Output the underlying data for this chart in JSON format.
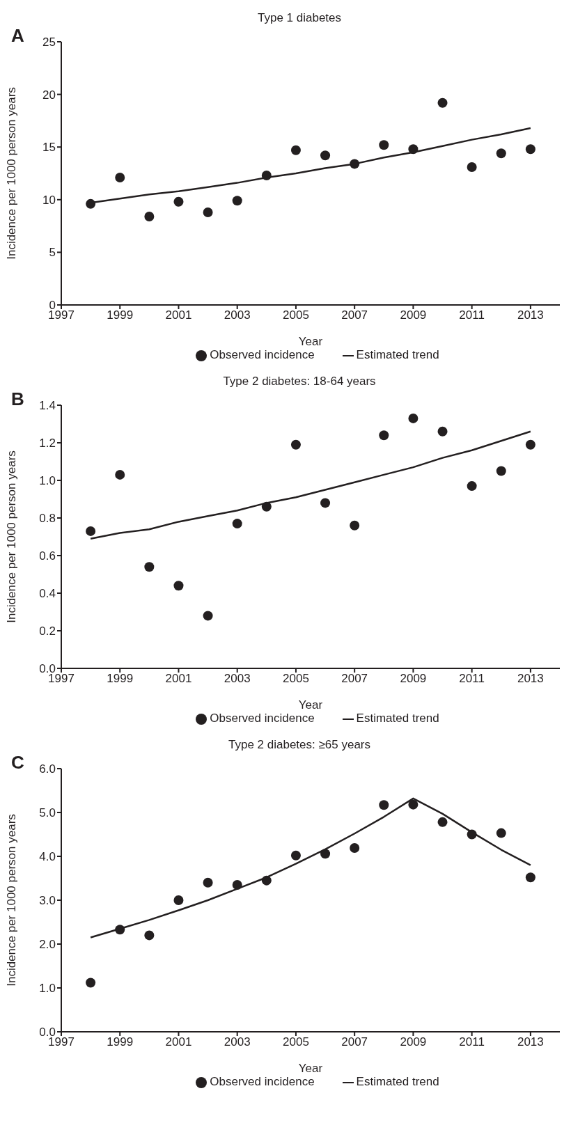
{
  "chart_data": [
    {
      "type": "scatter",
      "title": "Type 1 diabetes",
      "annotations": [
        "A"
      ],
      "xlabel": "Year",
      "ylabel": "Incidence per 1000 person years",
      "xlim": [
        1997,
        2014
      ],
      "xticks": [
        1997,
        1999,
        2001,
        2003,
        2005,
        2007,
        2009,
        2011,
        2013
      ],
      "ylim": [
        0,
        25
      ],
      "yticks": [
        0,
        5,
        10,
        15,
        20,
        25
      ],
      "grid": false,
      "legend": "bottom",
      "series": [
        {
          "name": "Observed incidence",
          "marker": "circle",
          "color": "#231f20",
          "x": [
            1998,
            1999,
            2000,
            2001,
            2002,
            2003,
            2004,
            2005,
            2006,
            2007,
            2008,
            2009,
            2010,
            2011,
            2012,
            2013
          ],
          "values": [
            9.6,
            12.1,
            8.4,
            9.8,
            8.8,
            9.9,
            12.3,
            14.7,
            14.2,
            13.4,
            15.2,
            14.8,
            19.2,
            13.1,
            14.4,
            14.8
          ]
        },
        {
          "name": "Estimated trend",
          "type": "line",
          "marker": "none",
          "line_style": "solid",
          "color": "#231f20",
          "x": [
            1998,
            1999,
            2000,
            2001,
            2002,
            2003,
            2004,
            2005,
            2006,
            2007,
            2008,
            2009,
            2010,
            2011,
            2012,
            2013
          ],
          "values": [
            9.7,
            10.1,
            10.5,
            10.8,
            11.2,
            11.6,
            12.1,
            12.5,
            13.0,
            13.4,
            14.0,
            14.5,
            15.1,
            15.7,
            16.2,
            16.8
          ]
        }
      ]
    },
    {
      "type": "scatter",
      "title": "Type 2 diabetes: 18-64 years",
      "annotations": [
        "B"
      ],
      "xlabel": "Year",
      "ylabel": "Incidence per 1000 person years",
      "xlim": [
        1997,
        2014
      ],
      "xticks": [
        1997,
        1999,
        2001,
        2003,
        2005,
        2007,
        2009,
        2011,
        2013
      ],
      "ylim": [
        0,
        1.4
      ],
      "yticks": [
        {
          "value": 0,
          "label": "0.0"
        },
        {
          "value": 0.2,
          "label": "0.2"
        },
        {
          "value": 0.4,
          "label": "0.4"
        },
        {
          "value": 0.6,
          "label": "0.6"
        },
        {
          "value": 0.8,
          "label": "0.8"
        },
        {
          "value": 1,
          "label": "1.0"
        },
        {
          "value": 1.2,
          "label": "1.2"
        },
        {
          "value": 1.4,
          "label": "1.4"
        }
      ],
      "grid": false,
      "legend": "bottom",
      "series": [
        {
          "name": "Observed incidence",
          "marker": "circle",
          "color": "#231f20",
          "x": [
            1998,
            1999,
            2000,
            2001,
            2002,
            2003,
            2004,
            2005,
            2006,
            2007,
            2008,
            2009,
            2010,
            2011,
            2012,
            2013
          ],
          "values": [
            0.73,
            1.03,
            0.54,
            0.44,
            0.28,
            0.77,
            0.86,
            1.19,
            0.88,
            0.76,
            1.24,
            1.33,
            1.26,
            0.97,
            1.05,
            1.19
          ]
        },
        {
          "name": "Estimated trend",
          "type": "line",
          "marker": "none",
          "line_style": "solid",
          "color": "#231f20",
          "x": [
            1998,
            1999,
            2000,
            2001,
            2002,
            2003,
            2004,
            2005,
            2006,
            2007,
            2008,
            2009,
            2010,
            2011,
            2012,
            2013
          ],
          "values": [
            0.69,
            0.72,
            0.74,
            0.78,
            0.81,
            0.84,
            0.88,
            0.91,
            0.95,
            0.99,
            1.03,
            1.07,
            1.12,
            1.16,
            1.21,
            1.26
          ]
        }
      ]
    },
    {
      "type": "scatter",
      "title": "Type 2 diabetes: ≥65 years",
      "annotations": [
        "C"
      ],
      "xlabel": "Year",
      "ylabel": "Incidence per 1000 person years",
      "xlim": [
        1997,
        2014
      ],
      "xticks": [
        1997,
        1999,
        2001,
        2003,
        2005,
        2007,
        2009,
        2011,
        2013
      ],
      "ylim": [
        0,
        6
      ],
      "yticks": [
        {
          "value": 0,
          "label": "0.0"
        },
        {
          "value": 1,
          "label": "1.0"
        },
        {
          "value": 2,
          "label": "2.0"
        },
        {
          "value": 3,
          "label": "3.0"
        },
        {
          "value": 4,
          "label": "4.0"
        },
        {
          "value": 5,
          "label": "5.0"
        },
        {
          "value": 6,
          "label": "6.0"
        }
      ],
      "grid": false,
      "legend": "bottom",
      "series": [
        {
          "name": "Observed incidence",
          "marker": "circle",
          "color": "#231f20",
          "x": [
            1998,
            1999,
            2000,
            2001,
            2002,
            2003,
            2004,
            2005,
            2006,
            2007,
            2008,
            2009,
            2010,
            2011,
            2012,
            2013
          ],
          "values": [
            1.12,
            2.33,
            2.2,
            3.0,
            3.4,
            3.35,
            3.45,
            4.02,
            4.06,
            4.19,
            5.17,
            5.18,
            4.78,
            4.5,
            4.53,
            3.52
          ]
        },
        {
          "name": "Estimated trend",
          "type": "line",
          "marker": "none",
          "line_style": "solid",
          "color": "#231f20",
          "x": [
            1998,
            1999,
            2000,
            2001,
            2002,
            2003,
            2004,
            2005,
            2006,
            2007,
            2008,
            2009,
            2010,
            2011,
            2012,
            2013
          ],
          "values": [
            2.15,
            2.35,
            2.55,
            2.77,
            3.0,
            3.26,
            3.52,
            3.83,
            4.16,
            4.52,
            4.9,
            5.32,
            4.97,
            4.55,
            4.15,
            3.8
          ]
        }
      ]
    }
  ]
}
